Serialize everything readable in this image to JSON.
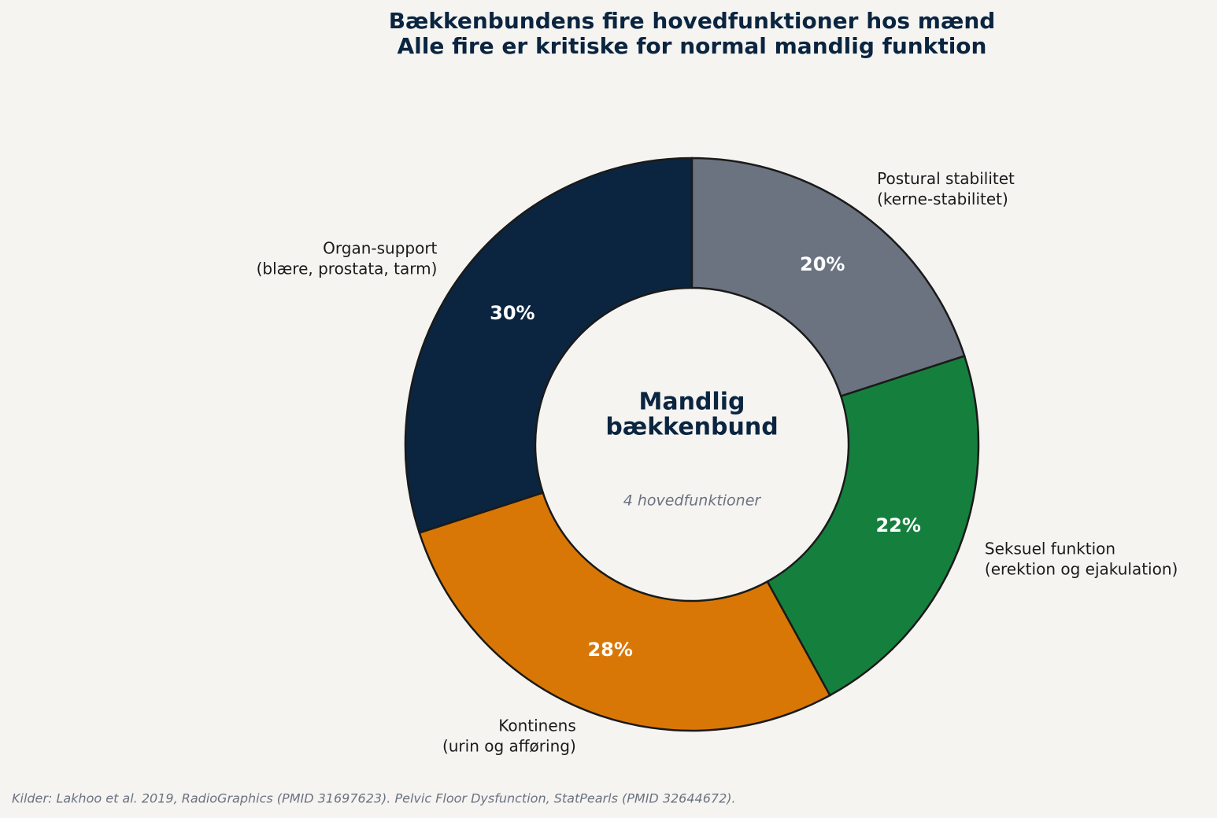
{
  "chart_data": {
    "type": "donut",
    "title": "Bækkenbundens fire hovedfunktioner hos mænd",
    "subtitle": "Alle fire er kritiske for normal mandlig funktion",
    "categories": [
      [
        "Organ-support",
        "(blære, prostata, tarm)"
      ],
      [
        "Kontinens",
        "(urin og afføring)"
      ],
      [
        "Seksuel funktion",
        "(erektion og ejakulation)"
      ],
      [
        "Postural stabilitet",
        "(kerne-stabilitet)"
      ]
    ],
    "values": [
      30,
      28,
      22,
      20
    ],
    "value_labels": [
      "30%",
      "28%",
      "22%",
      "20%"
    ],
    "colors": [
      "#0b2540",
      "#d97706",
      "#15803d",
      "#6b7280"
    ],
    "center_label": [
      "Mandlig",
      "bækkenbund"
    ],
    "center_sublabel": "4 hovedfunktioner",
    "source": "Kilder: Lakhoo et al. 2019, RadioGraphics (PMID 31697623). Pelvic Floor Dysfunction, StatPearls (PMID 32644672)."
  }
}
